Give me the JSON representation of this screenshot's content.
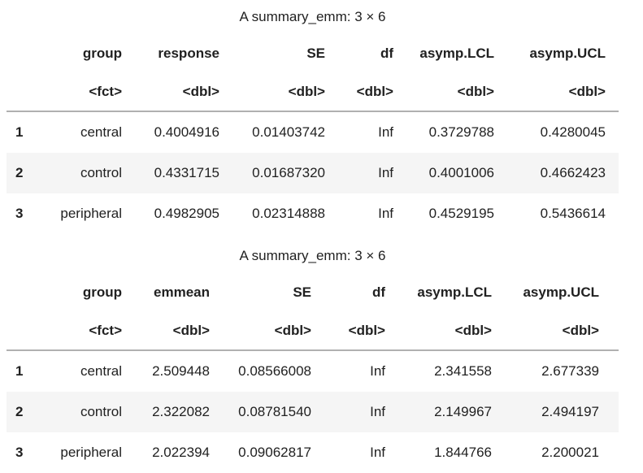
{
  "colors": {
    "background": "#ffffff",
    "text": "#212121",
    "stripe": "#f5f5f5",
    "header_rule": "#b0b0b0"
  },
  "tables": [
    {
      "title": "A summary_emm: 3 × 6",
      "headers": [
        "group",
        "response",
        "SE",
        "df",
        "asymp.LCL",
        "asymp.UCL"
      ],
      "types": [
        "<fct>",
        "<dbl>",
        "<dbl>",
        "<dbl>",
        "<dbl>",
        "<dbl>"
      ],
      "rows": [
        {
          "index": "1",
          "cells": [
            "central",
            "0.4004916",
            "0.01403742",
            "Inf",
            "0.3729788",
            "0.4280045"
          ]
        },
        {
          "index": "2",
          "cells": [
            "control",
            "0.4331715",
            "0.01687320",
            "Inf",
            "0.4001006",
            "0.4662423"
          ]
        },
        {
          "index": "3",
          "cells": [
            "peripheral",
            "0.4982905",
            "0.02314888",
            "Inf",
            "0.4529195",
            "0.5436614"
          ]
        }
      ]
    },
    {
      "title": "A summary_emm: 3 × 6",
      "headers": [
        "group",
        "emmean",
        "SE",
        "df",
        "asymp.LCL",
        "asymp.UCL"
      ],
      "types": [
        "<fct>",
        "<dbl>",
        "<dbl>",
        "<dbl>",
        "<dbl>",
        "<dbl>"
      ],
      "rows": [
        {
          "index": "1",
          "cells": [
            "central",
            "2.509448",
            "0.08566008",
            "Inf",
            "2.341558",
            "2.677339"
          ]
        },
        {
          "index": "2",
          "cells": [
            "control",
            "2.322082",
            "0.08781540",
            "Inf",
            "2.149967",
            "2.494197"
          ]
        },
        {
          "index": "3",
          "cells": [
            "peripheral",
            "2.022394",
            "0.09062817",
            "Inf",
            "1.844766",
            "2.200021"
          ]
        }
      ]
    }
  ]
}
